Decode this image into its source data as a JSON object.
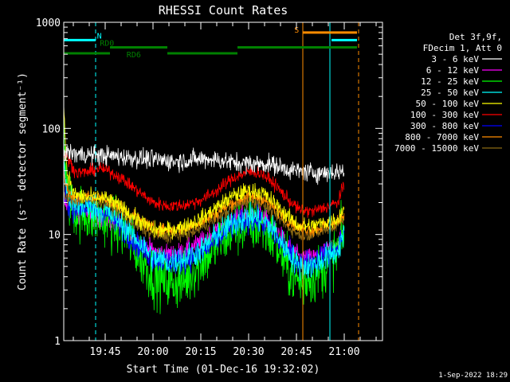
{
  "chart_data": {
    "type": "line",
    "title": "RHESSI Count Rates",
    "xlabel": "Start Time (01-Dec-16 19:32:02)",
    "ylabel": "Count Rate (s⁻¹ detector segment⁻¹)",
    "yscale": "log",
    "ylim": [
      1,
      1000
    ],
    "xlim_minutes": [
      0,
      100
    ],
    "x_ticks": [
      {
        "minute": 13,
        "label": "19:45"
      },
      {
        "minute": 28,
        "label": "20:00"
      },
      {
        "minute": 43,
        "label": "20:15"
      },
      {
        "minute": 58,
        "label": "20:30"
      },
      {
        "minute": 73,
        "label": "20:45"
      },
      {
        "minute": 88,
        "label": "21:00"
      }
    ],
    "y_ticks": [
      {
        "value": 1,
        "label": "1"
      },
      {
        "value": 10,
        "label": "10"
      },
      {
        "value": 100,
        "label": "100"
      },
      {
        "value": 1000,
        "label": "1000"
      }
    ],
    "legend_header": [
      "Det 3f,9f,",
      "FDecim 1, Att 0"
    ],
    "legend_position": "right",
    "series": [
      {
        "name": "3 - 6 keV",
        "color": "#ffffff",
        "noise": 0.09,
        "knots": [
          [
            0,
            60
          ],
          [
            5,
            57
          ],
          [
            15,
            55
          ],
          [
            25,
            52
          ],
          [
            35,
            49
          ],
          [
            45,
            52
          ],
          [
            55,
            47
          ],
          [
            65,
            46
          ],
          [
            72,
            40
          ],
          [
            80,
            38
          ],
          [
            86,
            39
          ],
          [
            88,
            40
          ]
        ]
      },
      {
        "name": "6 - 12 keV",
        "color": "#ff00ff",
        "noise": 0.09,
        "knots": [
          [
            0,
            20
          ],
          [
            3,
            17
          ],
          [
            8,
            15
          ],
          [
            13,
            14
          ],
          [
            18,
            12
          ],
          [
            23,
            9
          ],
          [
            28,
            7
          ],
          [
            33,
            6.5
          ],
          [
            38,
            7
          ],
          [
            43,
            8.5
          ],
          [
            48,
            11
          ],
          [
            53,
            14
          ],
          [
            58,
            16
          ],
          [
            62,
            15
          ],
          [
            66,
            12
          ],
          [
            70,
            8
          ],
          [
            74,
            6
          ],
          [
            78,
            6
          ],
          [
            82,
            7
          ],
          [
            86,
            8
          ],
          [
            88,
            12
          ]
        ]
      },
      {
        "name": "12 - 25 keV",
        "color": "#00ff00",
        "noise": 0.26,
        "knots": [
          [
            0,
            100
          ],
          [
            1,
            25
          ],
          [
            3,
            17
          ],
          [
            8,
            15
          ],
          [
            13,
            14
          ],
          [
            18,
            11
          ],
          [
            23,
            7
          ],
          [
            28,
            4
          ],
          [
            33,
            3.5
          ],
          [
            38,
            3.6
          ],
          [
            43,
            5.5
          ],
          [
            48,
            8
          ],
          [
            53,
            11
          ],
          [
            58,
            12.5
          ],
          [
            62,
            12
          ],
          [
            66,
            9
          ],
          [
            70,
            5
          ],
          [
            74,
            3.5
          ],
          [
            78,
            4
          ],
          [
            82,
            5
          ],
          [
            86,
            7
          ],
          [
            88,
            11
          ]
        ]
      },
      {
        "name": "25 - 50 keV",
        "color": "#00ffff",
        "noise": 0.13,
        "knots": [
          [
            0,
            45
          ],
          [
            1,
            25
          ],
          [
            3,
            19
          ],
          [
            8,
            18
          ],
          [
            13,
            17
          ],
          [
            18,
            13
          ],
          [
            23,
            9
          ],
          [
            28,
            6
          ],
          [
            33,
            5.5
          ],
          [
            38,
            6
          ],
          [
            43,
            7
          ],
          [
            48,
            10
          ],
          [
            53,
            13
          ],
          [
            58,
            15
          ],
          [
            62,
            14
          ],
          [
            66,
            11
          ],
          [
            70,
            7
          ],
          [
            74,
            5
          ],
          [
            78,
            5
          ],
          [
            82,
            6
          ],
          [
            86,
            7
          ],
          [
            88,
            11
          ]
        ]
      },
      {
        "name": "50 - 100 keV",
        "color": "#ffff00",
        "noise": 0.08,
        "knots": [
          [
            0,
            160
          ],
          [
            1,
            40
          ],
          [
            3,
            24
          ],
          [
            8,
            22
          ],
          [
            13,
            22
          ],
          [
            18,
            18
          ],
          [
            23,
            14
          ],
          [
            28,
            11
          ],
          [
            33,
            11
          ],
          [
            38,
            12
          ],
          [
            43,
            14
          ],
          [
            48,
            18
          ],
          [
            53,
            23
          ],
          [
            58,
            26
          ],
          [
            62,
            25
          ],
          [
            66,
            20
          ],
          [
            70,
            15
          ],
          [
            74,
            12
          ],
          [
            78,
            12
          ],
          [
            82,
            13
          ],
          [
            86,
            14
          ],
          [
            88,
            18
          ]
        ]
      },
      {
        "name": "100 - 300 keV",
        "color": "#ff0000",
        "noise": 0.06,
        "knots": [
          [
            0,
            60
          ],
          [
            2,
            48
          ],
          [
            4,
            38
          ],
          [
            8,
            39
          ],
          [
            11,
            42
          ],
          [
            14,
            40
          ],
          [
            18,
            34
          ],
          [
            23,
            26
          ],
          [
            28,
            20
          ],
          [
            33,
            18.5
          ],
          [
            38,
            19
          ],
          [
            43,
            21
          ],
          [
            48,
            26
          ],
          [
            53,
            34
          ],
          [
            58,
            39
          ],
          [
            62,
            38
          ],
          [
            66,
            30
          ],
          [
            70,
            22
          ],
          [
            74,
            17
          ],
          [
            78,
            16.5
          ],
          [
            82,
            18
          ],
          [
            86,
            20
          ],
          [
            88,
            30
          ]
        ]
      },
      {
        "name": "300 - 800 keV",
        "color": "#0000ff",
        "noise": 0.12,
        "knots": [
          [
            0,
            25
          ],
          [
            1,
            20
          ],
          [
            3,
            18
          ],
          [
            8,
            18
          ],
          [
            13,
            16
          ],
          [
            18,
            12
          ],
          [
            23,
            8
          ],
          [
            28,
            6
          ],
          [
            33,
            5.5
          ],
          [
            38,
            5.8
          ],
          [
            43,
            6.5
          ],
          [
            48,
            9
          ],
          [
            53,
            12
          ],
          [
            58,
            14
          ],
          [
            62,
            13
          ],
          [
            66,
            10
          ],
          [
            70,
            7
          ],
          [
            74,
            5.5
          ],
          [
            78,
            5.5
          ],
          [
            82,
            6.5
          ],
          [
            86,
            7
          ],
          [
            88,
            11
          ]
        ]
      },
      {
        "name": "800 - 7000 keV",
        "color": "#ff8c00",
        "noise": 0.06,
        "knots": [
          [
            0,
            40
          ],
          [
            1,
            26
          ],
          [
            3,
            22
          ],
          [
            8,
            23
          ],
          [
            13,
            22
          ],
          [
            18,
            18
          ],
          [
            23,
            14
          ],
          [
            28,
            11.5
          ],
          [
            33,
            11
          ],
          [
            38,
            11.5
          ],
          [
            43,
            13
          ],
          [
            48,
            16
          ],
          [
            53,
            20
          ],
          [
            58,
            23
          ],
          [
            62,
            22
          ],
          [
            66,
            18
          ],
          [
            70,
            14
          ],
          [
            74,
            11.5
          ],
          [
            78,
            11
          ],
          [
            82,
            12
          ],
          [
            86,
            13
          ],
          [
            88,
            16
          ]
        ]
      },
      {
        "name": "7000 - 15000 keV",
        "color": "#8b6914",
        "noise": 0.06,
        "knots": [
          [
            0,
            22
          ],
          [
            3,
            21
          ],
          [
            8,
            21
          ],
          [
            13,
            20
          ],
          [
            18,
            16
          ],
          [
            23,
            12
          ],
          [
            28,
            10
          ],
          [
            33,
            9.5
          ],
          [
            38,
            10
          ],
          [
            43,
            11.5
          ],
          [
            48,
            14
          ],
          [
            53,
            18
          ],
          [
            58,
            21
          ],
          [
            62,
            20
          ],
          [
            66,
            16
          ],
          [
            70,
            12
          ],
          [
            74,
            10
          ],
          [
            78,
            10
          ],
          [
            82,
            11
          ],
          [
            86,
            12
          ],
          [
            88,
            15
          ]
        ]
      }
    ],
    "state_bars": [
      {
        "label": "N",
        "color": "#00ffff",
        "value": 680,
        "segments": [
          [
            0,
            10
          ],
          [
            84,
            92
          ]
        ]
      },
      {
        "label": "RD0",
        "color": "#008000",
        "value": 580,
        "segments": [
          [
            14.5,
            32.5
          ]
        ]
      },
      {
        "label": "RD6",
        "color": "#008000",
        "value": 510,
        "segments": [
          [
            0,
            14.5
          ],
          [
            32.5,
            54.5
          ]
        ]
      },
      {
        "label": "",
        "color": "#008000",
        "value": 580,
        "segments": [
          [
            54.5,
            92
          ]
        ]
      },
      {
        "label": "S",
        "color": "#ff8c00",
        "value": 800,
        "segments": [
          [
            75,
            92
          ]
        ]
      }
    ],
    "markers": [
      {
        "minute": 10,
        "color": "#00ffff",
        "style": "dashed"
      },
      {
        "minute": 75,
        "color": "#ff8c00",
        "style": "solid"
      },
      {
        "minute": 83.5,
        "color": "#00ffff",
        "style": "solid"
      },
      {
        "minute": 92.5,
        "color": "#00ffff",
        "style": "dashed"
      },
      {
        "minute": 92.5,
        "color": "#ff8c00",
        "style": "dashed"
      }
    ],
    "footer": "1-Sep-2022 18:29"
  }
}
